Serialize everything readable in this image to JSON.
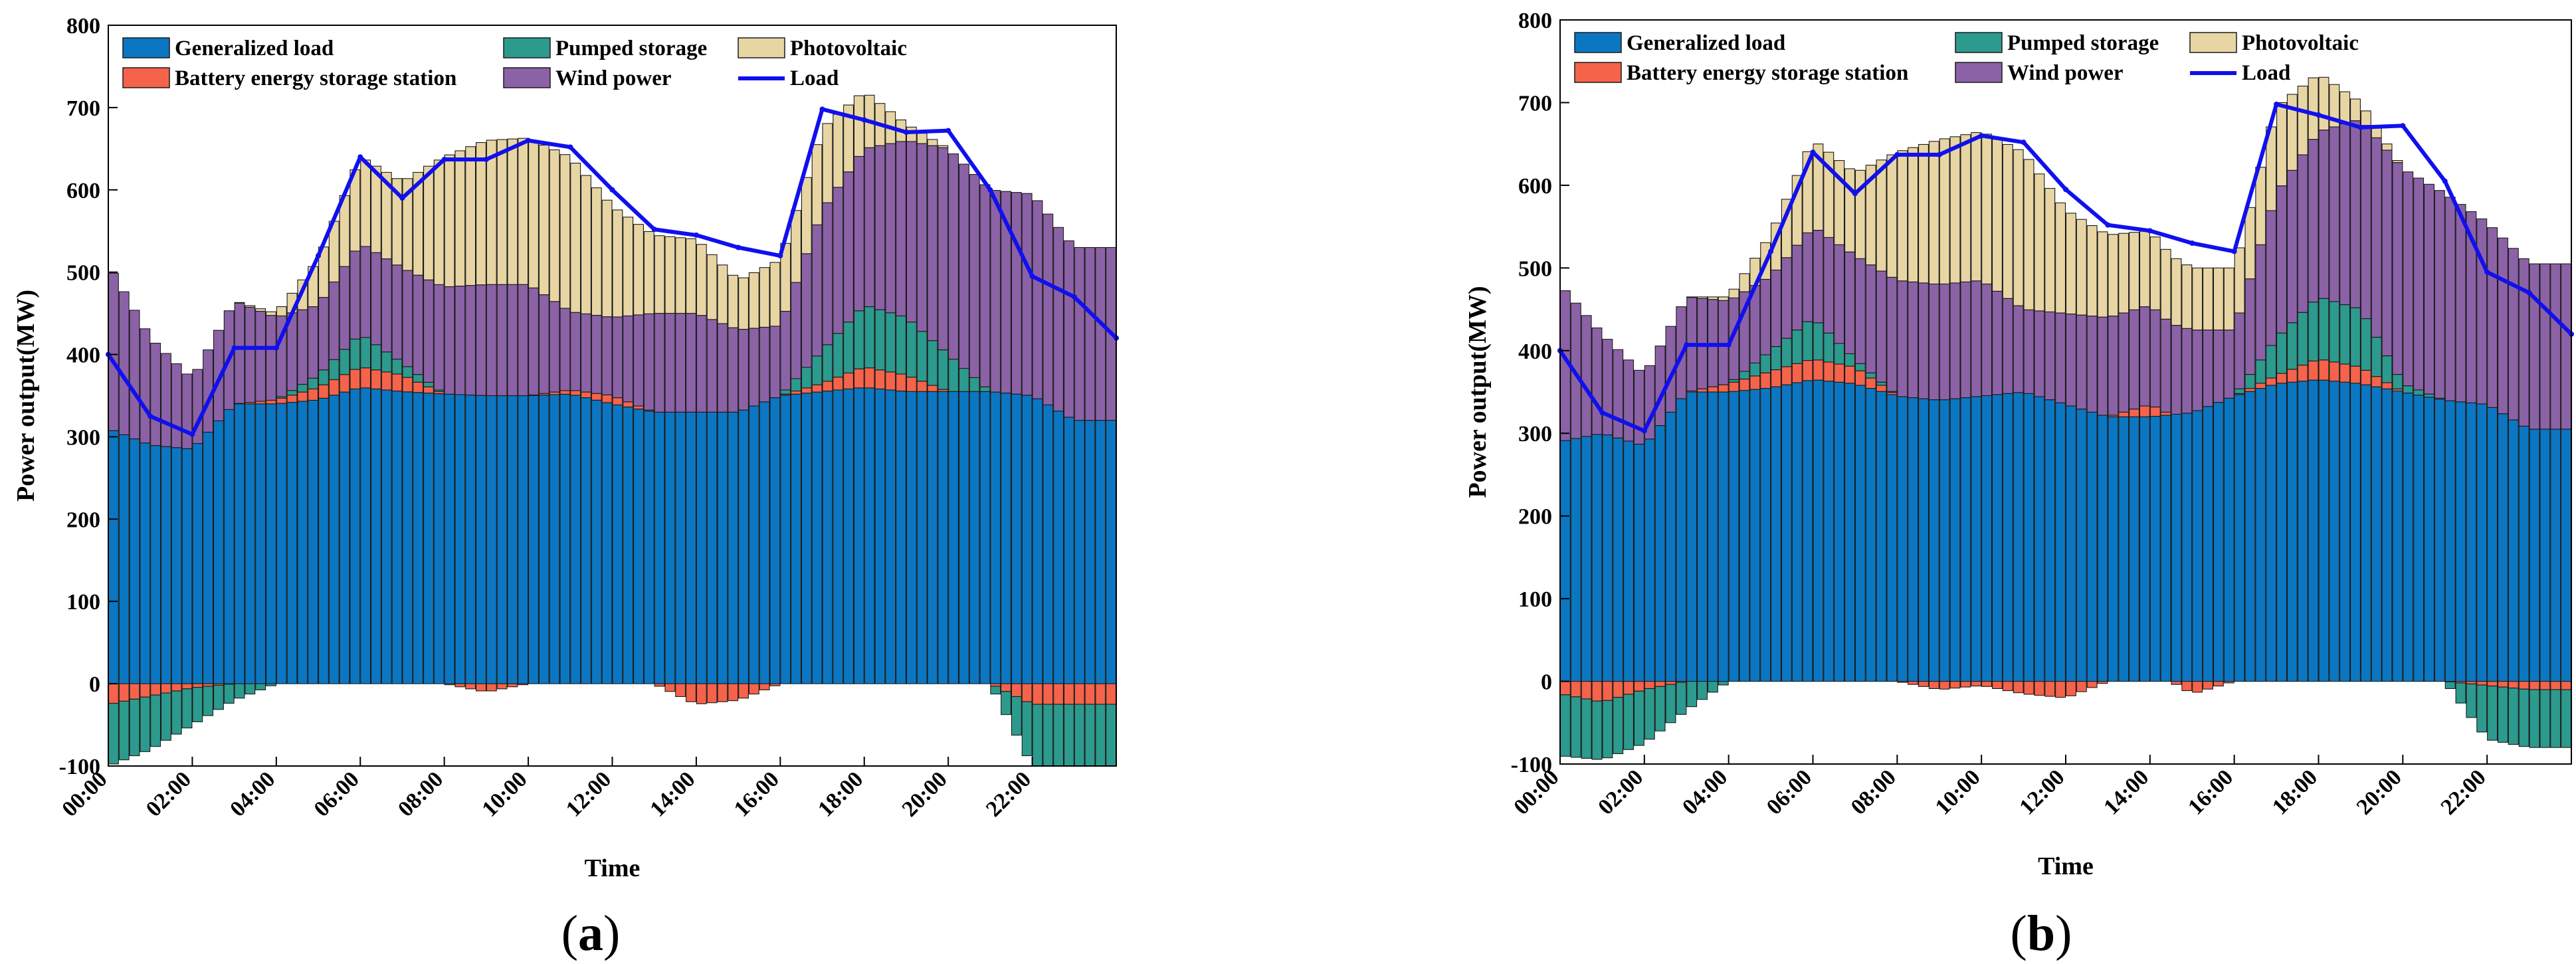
{
  "panels": [
    {
      "caption_pre": "(",
      "caption_letter": "a",
      "caption_post": ")"
    },
    {
      "caption_pre": "(",
      "caption_letter": "b",
      "caption_post": ")"
    }
  ],
  "colors": {
    "Generalized load": "#0b77c2",
    "Battery energy storage station": "#f5634a",
    "Pumped storage": "#2d9a8e",
    "Wind power": "#8c62a7",
    "Photovoltaic": "#e8d5a4",
    "Load": "#1010ee"
  },
  "chart_data": [
    {
      "type": "bar",
      "stacked": true,
      "xlabel": "Time",
      "ylabel": "Power output(MW)",
      "ylim": [
        -100,
        800
      ],
      "yticks": [
        -100,
        0,
        100,
        200,
        300,
        400,
        500,
        600,
        700,
        800
      ],
      "xlim": [
        0,
        24
      ],
      "xticks": [
        "00:00",
        "02:00",
        "04:00",
        "06:00",
        "08:00",
        "10:00",
        "12:00",
        "14:00",
        "16:00",
        "18:00",
        "20:00",
        "22:00"
      ],
      "grid": false,
      "legend_location": "top-left",
      "legend": [
        "Generalized load",
        "Battery energy storage station",
        "Pumped storage",
        "Wind power",
        "Photovoltaic",
        "Load"
      ],
      "intervals_per_hour": 4,
      "bar_series": [
        {
          "name": "Generalized load",
          "hourly": [
            310,
            290,
            285,
            340,
            340,
            345,
            360,
            355,
            352,
            350,
            350,
            352,
            340,
            330,
            330,
            330,
            350,
            355,
            360,
            355,
            355,
            355,
            350,
            320
          ]
        },
        {
          "name": "Battery energy storage station",
          "hourly": [
            -25,
            -15,
            -5,
            0,
            5,
            15,
            25,
            20,
            0,
            -10,
            0,
            5,
            10,
            0,
            -25,
            -20,
            0,
            10,
            25,
            20,
            0,
            0,
            -25,
            -25
          ]
        },
        {
          "name": "Pumped storage",
          "hourly": [
            -75,
            -65,
            -45,
            -20,
            0,
            15,
            40,
            15,
            0,
            0,
            0,
            0,
            0,
            0,
            0,
            0,
            0,
            40,
            75,
            70,
            45,
            0,
            -75,
            -75
          ]
        },
        {
          "name": "Wind power",
          "hourly": [
            200,
            130,
            85,
            125,
            100,
            85,
            110,
            115,
            130,
            135,
            135,
            95,
            95,
            120,
            120,
            100,
            85,
            170,
            190,
            215,
            250,
            245,
            245,
            210
          ]
        },
        {
          "name": "Photovoltaic",
          "hourly": [
            0,
            0,
            0,
            0,
            5,
            55,
            105,
            105,
            158,
            175,
            178,
            188,
            135,
            95,
            90,
            60,
            80,
            100,
            70,
            20,
            0,
            0,
            0,
            0
          ]
        }
      ],
      "line_series": [
        {
          "name": "Load",
          "x": [
            0,
            1,
            2,
            3,
            4,
            5,
            6,
            7,
            8,
            9,
            10,
            11,
            12,
            13,
            14,
            15,
            16,
            17,
            18,
            19,
            20,
            21,
            22,
            23,
            24
          ],
          "values": [
            400,
            325,
            303,
            408,
            408,
            520,
            640,
            590,
            637,
            637,
            660,
            652,
            600,
            552,
            545,
            530,
            520,
            698,
            685,
            670,
            672,
            600,
            495,
            470,
            420
          ]
        }
      ]
    },
    {
      "type": "bar",
      "stacked": true,
      "xlabel": "Time",
      "ylabel": "Power output(MW)",
      "ylim": [
        -100,
        800
      ],
      "yticks": [
        -100,
        0,
        100,
        200,
        300,
        400,
        500,
        600,
        700,
        800
      ],
      "xlim": [
        0,
        24
      ],
      "xticks": [
        "00:00",
        "02:00",
        "04:00",
        "06:00",
        "08:00",
        "10:00",
        "12:00",
        "14:00",
        "16:00",
        "18:00",
        "20:00",
        "22:00"
      ],
      "grid": false,
      "legend_location": "top-left",
      "legend": [
        "Generalized load",
        "Battery energy storage station",
        "Pumped storage",
        "Wind power",
        "Photovoltaic",
        "Load"
      ],
      "intervals_per_hour": 4,
      "bar_series": [
        {
          "name": "Generalized load",
          "hourly": [
            290,
            300,
            285,
            350,
            350,
            355,
            365,
            360,
            345,
            340,
            345,
            350,
            335,
            320,
            320,
            325,
            345,
            360,
            365,
            360,
            350,
            340,
            335,
            305
          ]
        },
        {
          "name": "Battery energy storage station",
          "hourly": [
            -15,
            -25,
            -10,
            0,
            10,
            20,
            25,
            20,
            0,
            -10,
            -5,
            -15,
            -20,
            0,
            15,
            -15,
            0,
            10,
            25,
            20,
            0,
            0,
            -5,
            -10
          ]
        },
        {
          "name": "Pumped storage",
          "hourly": [
            -75,
            -70,
            -65,
            -35,
            0,
            25,
            50,
            10,
            0,
            0,
            0,
            0,
            0,
            0,
            0,
            0,
            0,
            45,
            75,
            70,
            10,
            0,
            -65,
            -70
          ]
        },
        {
          "name": "Wind power",
          "hourly": [
            190,
            120,
            85,
            115,
            100,
            90,
            110,
            125,
            140,
            140,
            140,
            100,
            110,
            120,
            120,
            100,
            80,
            175,
            200,
            230,
            260,
            250,
            220,
            200
          ]
        },
        {
          "name": "Photovoltaic",
          "hourly": [
            0,
            0,
            0,
            0,
            5,
            50,
            105,
            100,
            155,
            175,
            180,
            190,
            125,
            100,
            90,
            75,
            75,
            105,
            70,
            20,
            0,
            0,
            0,
            0
          ]
        }
      ],
      "line_series": [
        {
          "name": "Load",
          "x": [
            0,
            1,
            2,
            3,
            4,
            5,
            6,
            7,
            8,
            9,
            10,
            11,
            12,
            13,
            14,
            15,
            16,
            17,
            18,
            19,
            20,
            21,
            22,
            23,
            24
          ],
          "values": [
            400,
            325,
            303,
            407,
            407,
            520,
            640,
            590,
            637,
            637,
            660,
            652,
            595,
            552,
            545,
            530,
            520,
            698,
            685,
            670,
            672,
            605,
            495,
            470,
            420
          ]
        }
      ]
    }
  ]
}
